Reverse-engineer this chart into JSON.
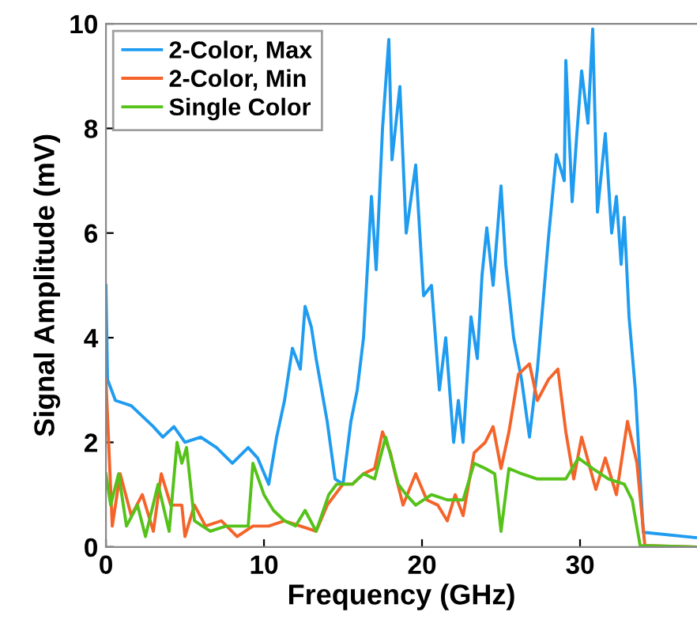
{
  "chart_data": {
    "type": "line",
    "xlabel": "Frequency (GHz)",
    "ylabel": "Signal Amplitude (mV)",
    "xlim": [
      0,
      37.4
    ],
    "ylim": [
      0,
      10
    ],
    "xticks": [
      0,
      10,
      20,
      30
    ],
    "yticks": [
      0,
      2,
      4,
      6,
      8,
      10
    ],
    "grid": false,
    "legend": "top left",
    "marker": "none",
    "line_style": "solid",
    "series": [
      {
        "name": "2-Color, Max",
        "color": "#1f9cf0",
        "x": [
          0,
          0.1,
          0.6,
          1.6,
          2.3,
          3.0,
          3.6,
          4.3,
          5.0,
          6.0,
          7.0,
          8.0,
          9.0,
          9.6,
          10.3,
          10.8,
          11.3,
          11.8,
          12.3,
          12.6,
          13.0,
          13.3,
          14.0,
          14.5,
          15.0,
          15.5,
          15.9,
          16.3,
          16.8,
          17.1,
          17.5,
          17.9,
          18.1,
          18.6,
          19.0,
          19.6,
          20.1,
          20.6,
          21.1,
          21.5,
          22.0,
          22.3,
          22.6,
          23.1,
          23.5,
          23.8,
          24.1,
          24.5,
          25.0,
          25.3,
          25.8,
          26.3,
          26.8,
          27.3,
          28.0,
          28.5,
          29.0,
          29.1,
          29.5,
          29.8,
          30.1,
          30.5,
          30.8,
          31.1,
          31.6,
          32.0,
          32.3,
          32.6,
          32.8,
          33.1,
          33.5,
          34.0,
          37.3
        ],
        "values": [
          5.0,
          3.2,
          2.8,
          2.7,
          2.5,
          2.3,
          2.1,
          2.3,
          2.0,
          2.1,
          1.9,
          1.6,
          1.9,
          1.7,
          1.2,
          2.1,
          2.8,
          3.8,
          3.4,
          4.6,
          4.2,
          3.6,
          2.4,
          1.3,
          1.2,
          2.4,
          3.0,
          4.0,
          6.7,
          5.3,
          8.0,
          9.7,
          7.4,
          8.8,
          6.0,
          7.3,
          4.8,
          5.0,
          3.0,
          4.0,
          2.0,
          2.8,
          2.0,
          4.4,
          3.6,
          5.2,
          6.1,
          5.0,
          6.9,
          5.4,
          4.0,
          3.2,
          2.1,
          3.4,
          5.9,
          7.5,
          7.0,
          9.3,
          6.6,
          7.9,
          9.1,
          8.1,
          9.9,
          6.4,
          7.9,
          6.0,
          6.7,
          5.4,
          6.3,
          4.4,
          3.0,
          0.28,
          0.18
        ]
      },
      {
        "name": "2-Color, Min",
        "color": "#f4642a",
        "x": [
          0,
          0.4,
          0.9,
          1.6,
          2.3,
          3.0,
          3.5,
          4.1,
          4.8,
          5.0,
          5.6,
          6.3,
          7.3,
          8.3,
          9.3,
          10.3,
          11.3,
          12.3,
          13.3,
          14.0,
          15.0,
          15.6,
          16.3,
          17.0,
          17.5,
          18.0,
          18.3,
          18.8,
          19.6,
          20.3,
          21.0,
          21.6,
          22.1,
          22.6,
          23.3,
          24.0,
          24.5,
          25.0,
          25.5,
          26.1,
          26.8,
          27.3,
          28.0,
          28.6,
          29.1,
          29.6,
          30.1,
          31.0,
          31.6,
          32.3,
          33.0,
          33.6,
          34.1,
          37.3
        ],
        "values": [
          3.2,
          0.4,
          1.4,
          0.6,
          1.0,
          0.3,
          1.4,
          0.8,
          0.8,
          0.2,
          0.8,
          0.4,
          0.5,
          0.2,
          0.4,
          0.4,
          0.5,
          0.4,
          0.3,
          0.8,
          1.2,
          1.2,
          1.4,
          1.5,
          2.2,
          1.8,
          1.4,
          0.8,
          1.4,
          0.9,
          0.8,
          0.5,
          1.0,
          0.6,
          1.8,
          2.0,
          2.3,
          1.5,
          2.2,
          3.3,
          3.5,
          2.8,
          3.2,
          3.4,
          2.2,
          1.3,
          2.1,
          1.1,
          1.7,
          1.0,
          2.4,
          1.6,
          0.03,
          0.0
        ]
      },
      {
        "name": "Single Color",
        "color": "#55c21a",
        "x": [
          0,
          0.3,
          0.8,
          1.3,
          2.0,
          2.5,
          3.3,
          4.0,
          4.5,
          4.8,
          5.1,
          5.6,
          6.6,
          7.6,
          9.0,
          9.3,
          10.0,
          10.6,
          11.3,
          12.0,
          12.6,
          13.3,
          14.1,
          14.6,
          15.6,
          16.3,
          17.0,
          17.7,
          18.5,
          19.0,
          19.6,
          20.6,
          21.6,
          22.6,
          23.3,
          24.0,
          24.6,
          25.0,
          25.5,
          26.3,
          27.3,
          28.3,
          29.1,
          29.9,
          30.8,
          31.8,
          32.8,
          33.3,
          33.8,
          37.3
        ],
        "values": [
          1.4,
          0.8,
          1.4,
          0.4,
          0.8,
          0.2,
          1.2,
          0.3,
          2.0,
          1.6,
          1.9,
          0.5,
          0.3,
          0.4,
          0.4,
          1.6,
          1.0,
          0.7,
          0.5,
          0.4,
          0.7,
          0.3,
          1.0,
          1.2,
          1.2,
          1.4,
          1.3,
          2.1,
          1.2,
          1.0,
          0.8,
          1.0,
          0.9,
          0.9,
          1.6,
          1.5,
          1.4,
          0.3,
          1.5,
          1.4,
          1.3,
          1.3,
          1.3,
          1.7,
          1.5,
          1.3,
          1.2,
          0.9,
          0.03,
          0.0
        ]
      }
    ]
  }
}
